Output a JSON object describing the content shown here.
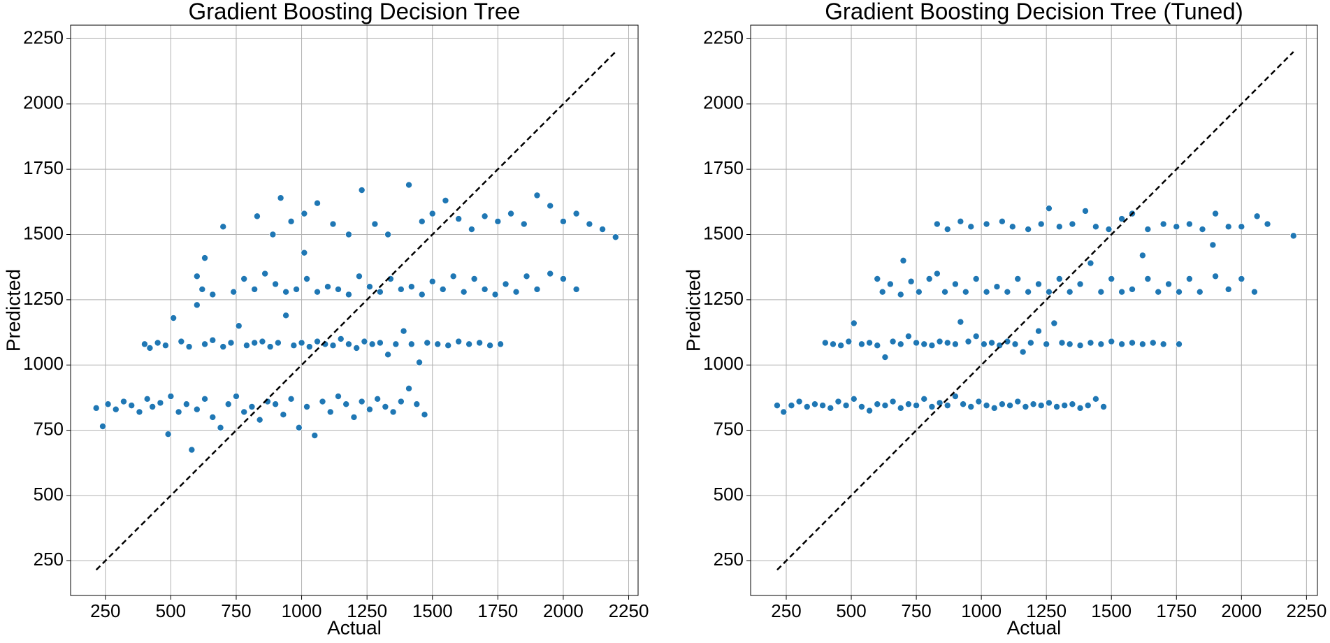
{
  "chart_data": [
    {
      "type": "scatter",
      "title": "Gradient Boosting Decision Tree",
      "x_label": "Actual",
      "y_label": "Predicted",
      "xlim": [
        117,
        2286
      ],
      "ylim": [
        117,
        2302
      ],
      "xticks": [
        250,
        500,
        750,
        1000,
        1250,
        1500,
        1750,
        2000,
        2250
      ],
      "yticks": [
        250,
        500,
        750,
        1000,
        1250,
        1500,
        1750,
        2000,
        2250
      ],
      "grid": true,
      "color": "#1f77b4",
      "x": [
        215,
        240,
        260,
        290,
        320,
        350,
        380,
        410,
        430,
        460,
        490,
        500,
        530,
        560,
        580,
        600,
        630,
        660,
        690,
        720,
        750,
        780,
        810,
        840,
        870,
        900,
        930,
        960,
        990,
        1020,
        1050,
        1080,
        1110,
        1140,
        1170,
        1200,
        1230,
        1260,
        1290,
        1320,
        1350,
        1380,
        1410,
        1440,
        1470,
        400,
        420,
        450,
        480,
        510,
        540,
        570,
        600,
        630,
        660,
        700,
        730,
        760,
        790,
        820,
        850,
        880,
        910,
        940,
        970,
        1000,
        1030,
        1060,
        1090,
        1120,
        1150,
        1180,
        1210,
        1240,
        1270,
        1300,
        1330,
        1360,
        1390,
        1420,
        1450,
        1480,
        1520,
        1560,
        1600,
        1640,
        1680,
        1720,
        1760,
        600,
        620,
        660,
        700,
        740,
        780,
        820,
        860,
        900,
        940,
        980,
        1020,
        1060,
        1100,
        1140,
        1180,
        1220,
        1260,
        1300,
        1340,
        1380,
        1420,
        1460,
        1500,
        1540,
        1580,
        1620,
        1660,
        1700,
        1740,
        1780,
        1820,
        1860,
        1900,
        1950,
        2000,
        2050,
        830,
        890,
        920,
        960,
        1010,
        1060,
        1120,
        1180,
        1230,
        1280,
        1330,
        1410,
        1460,
        1500,
        1550,
        1600,
        1650,
        1700,
        1750,
        1800,
        1850,
        1900,
        1950,
        2000,
        2050,
        2100,
        2150,
        2200,
        630,
        1010
      ],
      "values": [
        835,
        765,
        850,
        830,
        860,
        845,
        820,
        870,
        840,
        855,
        735,
        880,
        820,
        850,
        675,
        830,
        870,
        800,
        760,
        850,
        880,
        820,
        840,
        790,
        860,
        850,
        810,
        870,
        760,
        840,
        730,
        860,
        820,
        880,
        850,
        800,
        860,
        830,
        870,
        840,
        820,
        860,
        910,
        850,
        810,
        1080,
        1065,
        1085,
        1075,
        1180,
        1090,
        1070,
        1230,
        1080,
        1095,
        1070,
        1085,
        1150,
        1075,
        1085,
        1090,
        1070,
        1085,
        1190,
        1075,
        1085,
        1070,
        1090,
        1080,
        1075,
        1100,
        1080,
        1065,
        1090,
        1080,
        1085,
        1040,
        1080,
        1130,
        1080,
        1010,
        1085,
        1080,
        1075,
        1090,
        1080,
        1085,
        1075,
        1080,
        1340,
        1290,
        1270,
        1530,
        1280,
        1330,
        1290,
        1350,
        1310,
        1280,
        1290,
        1330,
        1280,
        1300,
        1290,
        1270,
        1340,
        1300,
        1280,
        1330,
        1290,
        1300,
        1270,
        1320,
        1290,
        1340,
        1280,
        1330,
        1290,
        1270,
        1310,
        1280,
        1340,
        1290,
        1350,
        1330,
        1290,
        1570,
        1500,
        1640,
        1550,
        1580,
        1620,
        1540,
        1500,
        1670,
        1540,
        1500,
        1690,
        1550,
        1580,
        1630,
        1560,
        1520,
        1570,
        1550,
        1580,
        1540,
        1650,
        1610,
        1550,
        1580,
        1540,
        1520,
        1490,
        1410,
        1430
      ],
      "reference_line": {
        "x": [
          215,
          2200
        ],
        "values": [
          215,
          2200
        ],
        "color": "#000000",
        "dashed": true
      }
    },
    {
      "type": "scatter",
      "title": "Gradient Boosting Decision Tree (Tuned)",
      "x_label": "Actual",
      "y_label": "Predicted",
      "xlim": [
        113,
        2292
      ],
      "ylim": [
        117,
        2302
      ],
      "xticks": [
        250,
        500,
        750,
        1000,
        1250,
        1500,
        1750,
        2000,
        2250
      ],
      "yticks": [
        250,
        500,
        750,
        1000,
        1250,
        1500,
        1750,
        2000,
        2250
      ],
      "grid": true,
      "color": "#1f77b4",
      "x": [
        215,
        240,
        270,
        300,
        330,
        360,
        390,
        420,
        450,
        480,
        510,
        540,
        570,
        600,
        630,
        660,
        690,
        720,
        750,
        780,
        810,
        840,
        870,
        900,
        930,
        960,
        990,
        1020,
        1050,
        1080,
        1110,
        1140,
        1170,
        1200,
        1230,
        1260,
        1290,
        1320,
        1350,
        1380,
        1410,
        1440,
        1470,
        400,
        430,
        460,
        490,
        510,
        540,
        570,
        600,
        630,
        660,
        690,
        720,
        750,
        780,
        810,
        840,
        870,
        900,
        920,
        950,
        980,
        1010,
        1040,
        1070,
        1100,
        1130,
        1160,
        1190,
        1220,
        1250,
        1280,
        1310,
        1340,
        1380,
        1420,
        1460,
        1500,
        1540,
        1580,
        1620,
        1660,
        1700,
        1760,
        600,
        620,
        650,
        690,
        700,
        730,
        760,
        800,
        830,
        860,
        900,
        940,
        980,
        1020,
        1060,
        1100,
        1140,
        1180,
        1220,
        1260,
        1300,
        1340,
        1380,
        1420,
        1460,
        1500,
        1540,
        1580,
        1620,
        1640,
        1680,
        1720,
        1760,
        1800,
        1840,
        1900,
        1950,
        2000,
        2050,
        830,
        870,
        920,
        960,
        1020,
        1080,
        1120,
        1180,
        1230,
        1260,
        1300,
        1350,
        1400,
        1440,
        1490,
        1540,
        1580,
        1640,
        1700,
        1750,
        1800,
        1850,
        1890,
        1900,
        1950,
        2000,
        2060,
        2100,
        2200
      ],
      "values": [
        845,
        820,
        845,
        860,
        840,
        850,
        845,
        835,
        860,
        845,
        870,
        840,
        825,
        850,
        845,
        860,
        835,
        850,
        845,
        870,
        840,
        855,
        845,
        880,
        850,
        840,
        860,
        845,
        835,
        850,
        845,
        860,
        840,
        850,
        845,
        855,
        840,
        845,
        850,
        835,
        845,
        870,
        840,
        1085,
        1080,
        1075,
        1090,
        1160,
        1080,
        1085,
        1075,
        1030,
        1090,
        1080,
        1110,
        1085,
        1080,
        1075,
        1090,
        1085,
        1080,
        1165,
        1090,
        1110,
        1080,
        1085,
        1075,
        1090,
        1080,
        1050,
        1085,
        1130,
        1080,
        1160,
        1085,
        1080,
        1075,
        1085,
        1080,
        1090,
        1080,
        1085,
        1080,
        1085,
        1080,
        1080,
        1330,
        1280,
        1310,
        1270,
        1400,
        1320,
        1280,
        1330,
        1350,
        1280,
        1310,
        1280,
        1330,
        1280,
        1300,
        1280,
        1330,
        1280,
        1310,
        1280,
        1330,
        1280,
        1310,
        1390,
        1280,
        1330,
        1280,
        1290,
        1420,
        1330,
        1280,
        1310,
        1280,
        1330,
        1280,
        1340,
        1290,
        1330,
        1280,
        1540,
        1520,
        1550,
        1530,
        1540,
        1550,
        1530,
        1520,
        1540,
        1600,
        1530,
        1540,
        1590,
        1530,
        1520,
        1560,
        1580,
        1520,
        1540,
        1530,
        1540,
        1520,
        1460,
        1580,
        1530,
        1530,
        1570,
        1540,
        1495
      ],
      "reference_line": {
        "x": [
          215,
          2200
        ],
        "values": [
          215,
          2200
        ],
        "color": "#000000",
        "dashed": true
      }
    }
  ]
}
